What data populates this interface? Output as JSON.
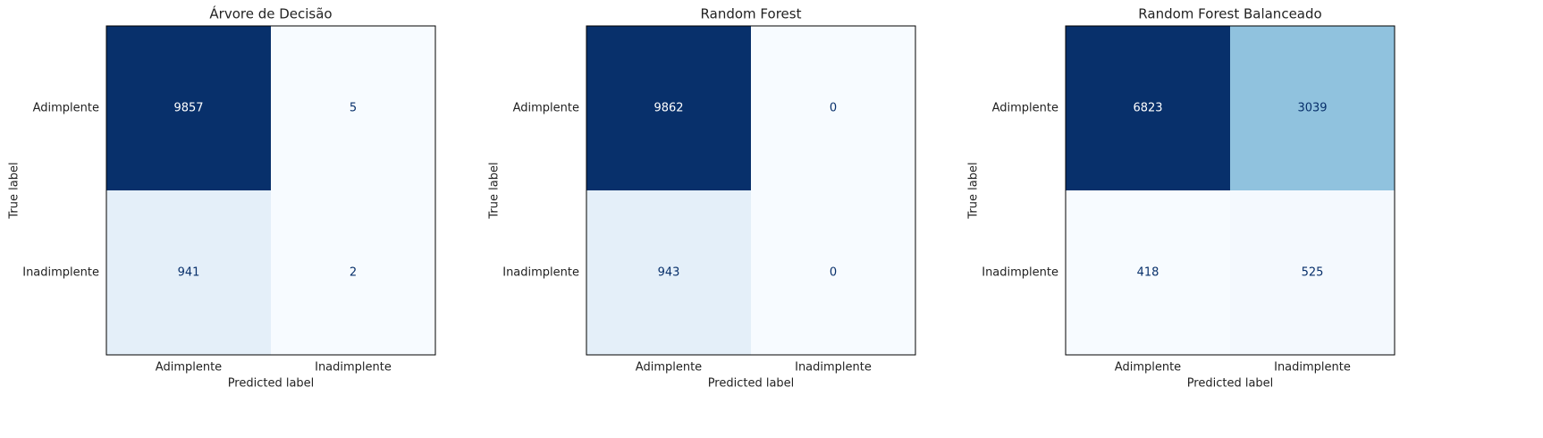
{
  "chart_data": [
    {
      "type": "heatmap",
      "title": "Árvore de Decisão",
      "x_label": "Predicted label",
      "y_label": "True label",
      "x_categories": [
        "Adimplente",
        "Inadimplente"
      ],
      "y_categories": [
        "Adimplente",
        "Inadimplente"
      ],
      "values": [
        [
          9857,
          5
        ],
        [
          941,
          2
        ]
      ],
      "colormap": "Blues"
    },
    {
      "type": "heatmap",
      "title": "Random Forest",
      "x_label": "Predicted label",
      "y_label": "True label",
      "x_categories": [
        "Adimplente",
        "Inadimplente"
      ],
      "y_categories": [
        "Adimplente",
        "Inadimplente"
      ],
      "values": [
        [
          9862,
          0
        ],
        [
          943,
          0
        ]
      ],
      "colormap": "Blues"
    },
    {
      "type": "heatmap",
      "title": "Random Forest Balanceado",
      "x_label": "Predicted label",
      "y_label": "True label",
      "x_categories": [
        "Adimplente",
        "Inadimplente"
      ],
      "y_categories": [
        "Adimplente",
        "Inadimplente"
      ],
      "values": [
        [
          6823,
          3039
        ],
        [
          418,
          525
        ]
      ],
      "colormap": "Blues"
    }
  ]
}
